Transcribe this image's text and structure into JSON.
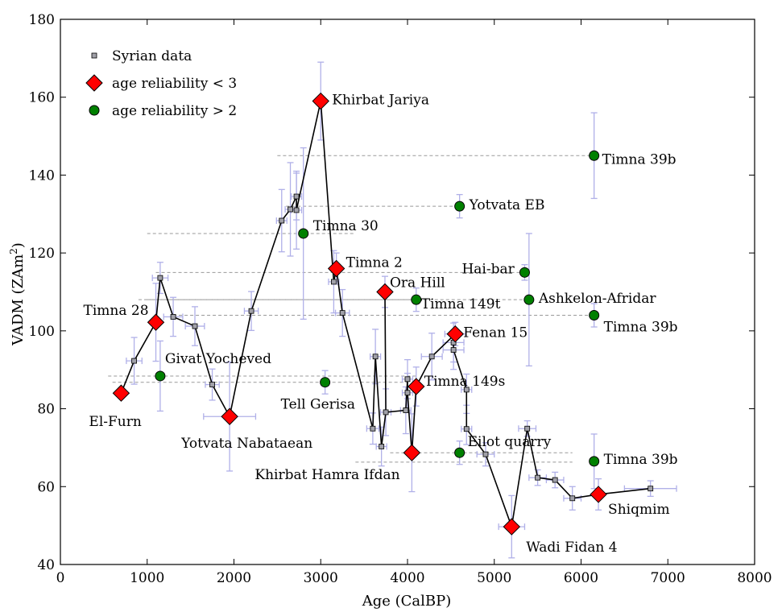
{
  "chart_data": {
    "type": "scatter",
    "xlabel": "Age (CalBP)",
    "ylabel_main": "VADM (ZAm",
    "ylabel_sup": "2",
    "ylabel_close": ")",
    "xlim": [
      0,
      8000
    ],
    "ylim": [
      40,
      180
    ],
    "xticks": [
      0,
      1000,
      2000,
      3000,
      4000,
      5000,
      6000,
      7000,
      8000
    ],
    "yticks": [
      40,
      60,
      80,
      100,
      120,
      140,
      160,
      180
    ],
    "grid": false,
    "legend_position": "top-left",
    "colors": {
      "syrian": "#a0a0a8",
      "diamond": "#ff0000",
      "circle": "#008000",
      "errorbar": "#b0b0e8",
      "range": "#999999",
      "line": "#000000"
    },
    "legend": [
      {
        "label": "Syrian data",
        "marker": "square"
      },
      {
        "label": "age reliability < 3",
        "marker": "diamond"
      },
      {
        "label": "age reliability > 2",
        "marker": "circle"
      }
    ],
    "syrian": [
      [
        850,
        92.3,
        6,
        90
      ],
      [
        1150,
        113.6,
        4,
        90
      ],
      [
        1300,
        103.6,
        5,
        110
      ],
      [
        1550,
        101.2,
        5,
        110
      ],
      [
        1750,
        86.2,
        4,
        80
      ],
      [
        2200,
        105.1,
        5,
        80
      ],
      [
        2550,
        128.3,
        8,
        60
      ],
      [
        2650,
        131.2,
        12,
        60
      ],
      [
        2720,
        134.5,
        6,
        60
      ],
      [
        2720,
        131.0,
        10,
        60
      ],
      [
        3150,
        112.6,
        8,
        60
      ],
      [
        3250,
        104.6,
        6,
        80
      ],
      [
        3600,
        74.9,
        4,
        70
      ],
      [
        3630,
        93.4,
        7,
        60
      ],
      [
        3700,
        70.3,
        5,
        60
      ],
      [
        3750,
        79.1,
        6,
        60
      ],
      [
        3980,
        79.6,
        6,
        60
      ],
      [
        4000,
        87.6,
        5,
        60
      ],
      [
        4000,
        84.1,
        5,
        60
      ],
      [
        4280,
        93.4,
        6,
        120
      ],
      [
        4530,
        97.0,
        5,
        120
      ],
      [
        4530,
        95.1,
        5,
        120
      ],
      [
        4680,
        84.9,
        4,
        60
      ],
      [
        4680,
        74.8,
        4,
        60
      ],
      [
        4900,
        68.3,
        3,
        100
      ],
      [
        5380,
        74.9,
        2,
        100
      ],
      [
        5500,
        62.3,
        2,
        100
      ],
      [
        5700,
        61.7,
        2,
        100
      ],
      [
        5900,
        57.0,
        3,
        100
      ],
      [
        6800,
        59.5,
        2,
        300
      ]
    ],
    "path": [
      [
        700,
        84
      ],
      [
        850,
        92.3
      ],
      [
        1100,
        102.2
      ],
      [
        1150,
        113.6
      ],
      [
        1300,
        103.6
      ],
      [
        1550,
        101.2
      ],
      [
        1750,
        86.2
      ],
      [
        1950,
        78
      ],
      [
        2200,
        105.1
      ],
      [
        2550,
        128.3
      ],
      [
        2650,
        131.2
      ],
      [
        2720,
        134.5
      ],
      [
        2720,
        131.0
      ],
      [
        3000,
        159
      ],
      [
        3150,
        112.6
      ],
      [
        3180,
        116
      ],
      [
        3250,
        104.6
      ],
      [
        3600,
        74.9
      ],
      [
        3630,
        93.4
      ],
      [
        3700,
        70.3
      ],
      [
        3750,
        79.1
      ],
      [
        3740,
        110
      ],
      [
        3750,
        79.1
      ],
      [
        3980,
        79.6
      ],
      [
        4000,
        87.6
      ],
      [
        4000,
        84.1
      ],
      [
        4050,
        68.7
      ],
      [
        4100,
        85.7
      ],
      [
        4280,
        93.4
      ],
      [
        4550,
        99.2
      ],
      [
        4530,
        97.0
      ],
      [
        4530,
        95.1
      ],
      [
        4680,
        84.9
      ],
      [
        4680,
        74.8
      ],
      [
        4900,
        68.3
      ],
      [
        5200,
        49.7
      ],
      [
        5380,
        74.9
      ],
      [
        5500,
        62.3
      ],
      [
        5700,
        61.7
      ],
      [
        5900,
        57.0
      ],
      [
        6200,
        58.0
      ],
      [
        6800,
        59.5
      ]
    ],
    "diamonds": [
      {
        "label": "El-Furn",
        "x": 700,
        "y": 84,
        "ey": 0,
        "ex": 0,
        "lx": -40,
        "ly": 35
      },
      {
        "label": "Timna 28",
        "x": 1100,
        "y": 102.2,
        "ey": 10,
        "ex": 0,
        "lx": -90,
        "ly": -15
      },
      {
        "label": "Yotvata Nabataean",
        "x": 1950,
        "y": 78,
        "ey": 14,
        "ex": 300,
        "lx": -60,
        "ly": 33
      },
      {
        "label": "Khirbat Jariya",
        "x": 3000,
        "y": 159,
        "ey": 10,
        "ex": 0,
        "lx": 14,
        "ly": -2
      },
      {
        "label": "Timna 2",
        "x": 3180,
        "y": 116,
        "ey": 4,
        "ex": 0,
        "lx": 12,
        "ly": -8
      },
      {
        "label": "Ora Hill",
        "x": 3740,
        "y": 110,
        "ey": 4,
        "ex": 0,
        "lx": 6,
        "ly": -12
      },
      {
        "label": "Timna 149s",
        "x": 4100,
        "y": 85.7,
        "ey": 5,
        "ex": 0,
        "lx": 10,
        "ly": -7
      },
      {
        "label": "Khirbat Hamra Ifdan",
        "x": 4050,
        "y": 68.7,
        "ey": 10,
        "ex": 0,
        "lx": -195,
        "ly": 27
      },
      {
        "label": "Fenan 15",
        "x": 4550,
        "y": 99.2,
        "ey": 3,
        "ex": 120,
        "lx": 10,
        "ly": -2
      },
      {
        "label": "Wadi Fidan 4",
        "x": 5200,
        "y": 49.7,
        "ey": 8,
        "ex": 150,
        "lx": 18,
        "ly": 25
      },
      {
        "label": "Shiqmim",
        "x": 6200,
        "y": 58.0,
        "ey": 4,
        "ex": 0,
        "lx": 12,
        "ly": 18
      }
    ],
    "circles": [
      {
        "label": "Givat Yocheved",
        "x": 1150,
        "y": 88.4,
        "ey": 9,
        "ex": 0,
        "range": [
          550,
          4100
        ],
        "lx": 6,
        "ly": -22
      },
      {
        "label": "Tell Gerisa",
        "x": 3050,
        "y": 86.8,
        "ey": 3,
        "ex": 0,
        "range": [
          600,
          4000
        ],
        "lx": -55,
        "ly": 27
      },
      {
        "label": "Timna 30",
        "x": 2800,
        "y": 125,
        "ey": 22,
        "ex": 0,
        "range": [
          1000,
          3400
        ],
        "lx": 12,
        "ly": -10
      },
      {
        "label": "Timna 149t",
        "x": 4100,
        "y": 108,
        "ey": 3,
        "ex": 0,
        "range": [
          900,
          4100
        ],
        "lx": 6,
        "ly": 5
      },
      {
        "label": "Yotvata EB",
        "x": 4600,
        "y": 132,
        "ey": 3,
        "ex": 0,
        "range": [
          2600,
          4600
        ],
        "lx": 12,
        "ly": -2
      },
      {
        "label": "Hai-bar",
        "x": 5350,
        "y": 115,
        "ey": 2,
        "ex": 0,
        "range": [
          1100,
          5400
        ],
        "lx": -78,
        "ly": -5
      },
      {
        "label": "Ashkelon-Afridar",
        "x": 5400,
        "y": 108,
        "ey": 17,
        "ex": 0,
        "range": [
          1000,
          5400
        ],
        "lx": 12,
        "ly": -2
      },
      {
        "label": "Timna 39b",
        "x": 6150,
        "y": 145,
        "ey": 11,
        "ex": 0,
        "range": [
          2500,
          6100
        ],
        "lx": 10,
        "ly": 4
      },
      {
        "label": "Timna 39b",
        "x": 6150,
        "y": 104,
        "ey": 3,
        "ex": 0,
        "range": [
          1300,
          6100
        ],
        "lx": 12,
        "ly": 14
      },
      {
        "label": "Timna 39b",
        "x": 6150,
        "y": 66.5,
        "ey": 7,
        "ex": 0,
        "range": [
          0,
          0
        ],
        "lx": 12,
        "ly": -3
      },
      {
        "label": "Eilot quarry",
        "x": 4600,
        "y": 68.7,
        "ey": 3,
        "ex": 0,
        "range": [
          3800,
          5900
        ],
        "lx": 10,
        "ly": -14
      }
    ],
    "extra_ranges": [
      [
        3400,
        5900,
        66.3
      ]
    ]
  }
}
